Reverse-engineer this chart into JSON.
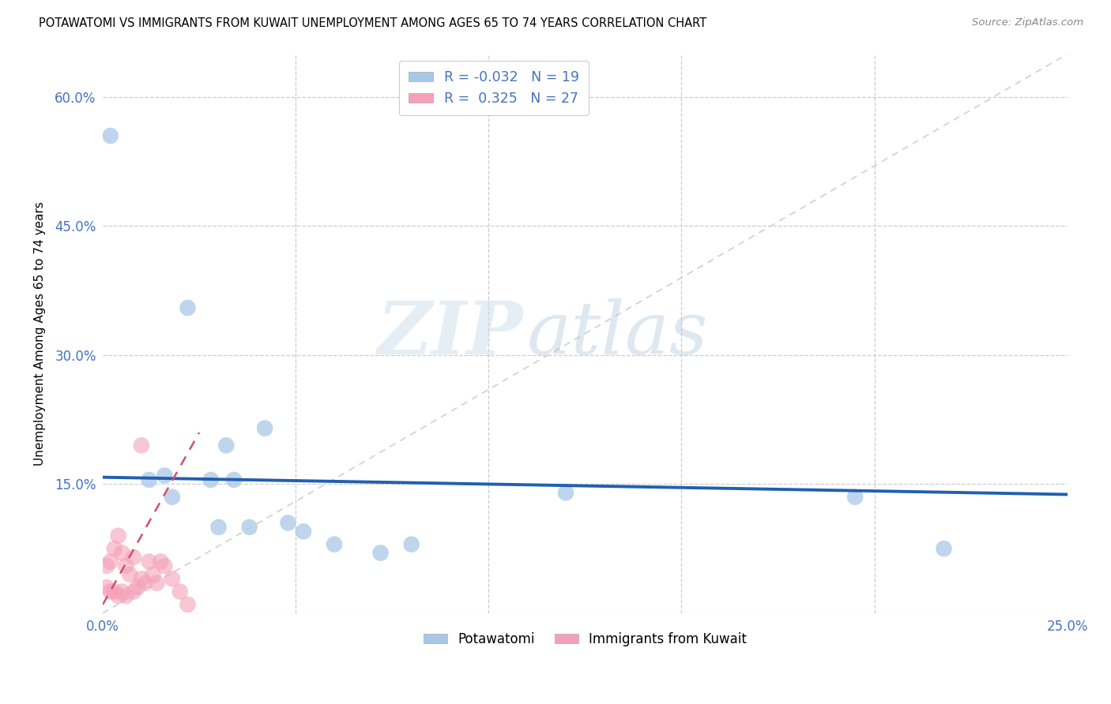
{
  "title": "POTAWATOMI VS IMMIGRANTS FROM KUWAIT UNEMPLOYMENT AMONG AGES 65 TO 74 YEARS CORRELATION CHART",
  "source": "Source: ZipAtlas.com",
  "ylabel": "Unemployment Among Ages 65 to 74 years",
  "xlim": [
    0.0,
    0.25
  ],
  "ylim": [
    0.0,
    0.65
  ],
  "xticks": [
    0.0,
    0.05,
    0.1,
    0.15,
    0.2,
    0.25
  ],
  "yticks": [
    0.0,
    0.15,
    0.3,
    0.45,
    0.6
  ],
  "xticklabels": [
    "0.0%",
    "",
    "",
    "",
    "",
    "25.0%"
  ],
  "yticklabels": [
    "",
    "15.0%",
    "30.0%",
    "45.0%",
    "60.0%"
  ],
  "legend_r1": "R = -0.032",
  "legend_n1": "N = 19",
  "legend_r2": "R =  0.325",
  "legend_n2": "N = 27",
  "blue_color": "#a8c8e8",
  "pink_color": "#f4a0b8",
  "blue_line_color": "#2060b0",
  "pink_line_color": "#d05070",
  "diagonal_color": "#d0d0d0",
  "watermark_zip": "ZIP",
  "watermark_atlas": "atlas",
  "blue_x": [
    0.002,
    0.012,
    0.016,
    0.018,
    0.022,
    0.028,
    0.032,
    0.034,
    0.038,
    0.042,
    0.048,
    0.052,
    0.06,
    0.072,
    0.08,
    0.12,
    0.195,
    0.218,
    0.03
  ],
  "blue_y": [
    0.555,
    0.155,
    0.16,
    0.135,
    0.355,
    0.155,
    0.195,
    0.155,
    0.1,
    0.215,
    0.105,
    0.095,
    0.08,
    0.07,
    0.08,
    0.14,
    0.135,
    0.075,
    0.1
  ],
  "pink_x": [
    0.001,
    0.001,
    0.002,
    0.002,
    0.003,
    0.003,
    0.004,
    0.004,
    0.005,
    0.005,
    0.006,
    0.006,
    0.007,
    0.008,
    0.008,
    0.009,
    0.01,
    0.01,
    0.011,
    0.012,
    0.013,
    0.014,
    0.015,
    0.016,
    0.018,
    0.02,
    0.022
  ],
  "pink_y": [
    0.03,
    0.055,
    0.025,
    0.06,
    0.025,
    0.075,
    0.02,
    0.09,
    0.025,
    0.07,
    0.02,
    0.055,
    0.045,
    0.025,
    0.065,
    0.03,
    0.04,
    0.195,
    0.035,
    0.06,
    0.045,
    0.035,
    0.06,
    0.055,
    0.04,
    0.025,
    0.01
  ],
  "blue_line_x0": 0.0,
  "blue_line_x1": 0.25,
  "blue_line_y0": 0.158,
  "blue_line_y1": 0.138,
  "pink_line_x0": 0.0,
  "pink_line_x1": 0.025,
  "pink_line_y0": 0.01,
  "pink_line_y1": 0.21
}
